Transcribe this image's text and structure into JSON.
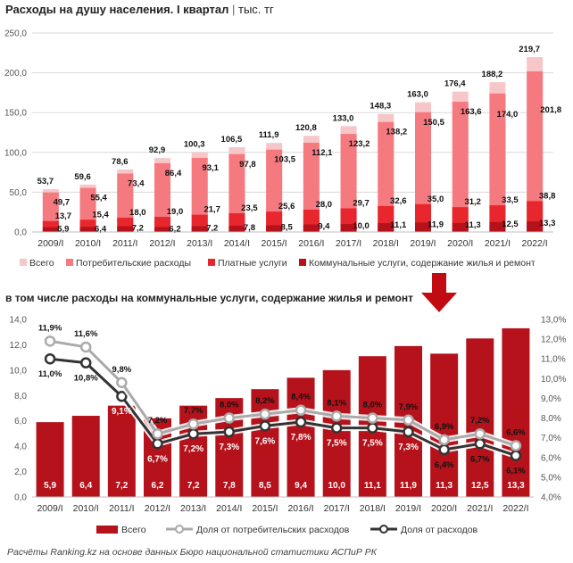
{
  "header": {
    "title_bold": "Расходы на душу населения. I квартал",
    "title_sep": "|",
    "title_unit": "тыс. тг"
  },
  "subheader": {
    "title": "в том числе расходы на коммунальные услуги, содержание жилья и ремонт"
  },
  "footer": {
    "source": "Расчёты Ranking.kz на основе данных Бюро национальной статистики АСПиР РК"
  },
  "colors": {
    "total": "#f7c6c9",
    "consumer": "#f57a80",
    "paid": "#e8262d",
    "communal": "#b5121b",
    "arrow": "#c20a12",
    "share_consumer": "#aaaaaa",
    "share_total": "#333333"
  },
  "chart_data": [
    {
      "type": "bar",
      "title": "Расходы на душу населения. I квартал",
      "unit": "тыс. тг",
      "categories": [
        "2009/I",
        "2010/I",
        "2011/I",
        "2012/I",
        "2013/I",
        "2014/I",
        "2015/I",
        "2016/I",
        "2017/I",
        "2018/I",
        "2019/I",
        "2020/I",
        "2021/I",
        "2022/I"
      ],
      "y_ticks": [
        "0,0",
        "50,0",
        "100,0",
        "150,0",
        "200,0",
        "250,0"
      ],
      "ylim": [
        0,
        250
      ],
      "grid": true,
      "legend_position": "bottom",
      "series": [
        {
          "name": "Всего",
          "values": [
            53.7,
            59.6,
            78.6,
            92.9,
            100.3,
            106.5,
            111.9,
            120.8,
            133.0,
            148.3,
            163.0,
            176.4,
            188.2,
            219.7
          ],
          "labels": [
            "53,7",
            "59,6",
            "78,6",
            "92,9",
            "100,3",
            "106,5",
            "111,9",
            "120,8",
            "133,0",
            "148,3",
            "163,0",
            "176,4",
            "188,2",
            "219,7"
          ]
        },
        {
          "name": "Потребительские расходы",
          "values": [
            49.7,
            55.4,
            73.4,
            86.4,
            93.1,
            97.8,
            103.5,
            112.1,
            123.2,
            138.2,
            150.5,
            163.6,
            174.0,
            201.8
          ],
          "labels": [
            "49,7",
            "55,4",
            "73,4",
            "86,4",
            "93,1",
            "97,8",
            "103,5",
            "112,1",
            "123,2",
            "138,2",
            "150,5",
            "163,6",
            "174,0",
            "201,8"
          ]
        },
        {
          "name": "Платные услуги",
          "values": [
            13.7,
            15.4,
            18.0,
            19.0,
            21.7,
            23.5,
            25.6,
            28.0,
            29.7,
            32.6,
            35.0,
            31.2,
            33.5,
            38.8
          ],
          "labels": [
            "13,7",
            "15,4",
            "18,0",
            "19,0",
            "21,7",
            "23,5",
            "25,6",
            "28,0",
            "29,7",
            "32,6",
            "35,0",
            "31,2",
            "33,5",
            "38,8"
          ]
        },
        {
          "name": "Коммунальные услуги, содержание жилья и ремонт",
          "values": [
            5.9,
            6.4,
            7.2,
            6.2,
            7.2,
            7.8,
            8.5,
            9.4,
            10.0,
            11.1,
            11.9,
            11.3,
            12.5,
            13.3
          ],
          "labels": [
            "5,9",
            "6,4",
            "7,2",
            "6,2",
            "7,2",
            "7,8",
            "8,5",
            "9,4",
            "10,0",
            "11,1",
            "11,9",
            "11,3",
            "12,5",
            "13,3"
          ]
        }
      ]
    },
    {
      "type": "bar",
      "title": "в том числе расходы на коммунальные услуги, содержание жилья и ремонт",
      "categories": [
        "2009/I",
        "2010/I",
        "2011/I",
        "2012/I",
        "2013/I",
        "2014/I",
        "2015/I",
        "2016/I",
        "2017/I",
        "2018/I",
        "2019/I",
        "2020/I",
        "2021/I",
        "2022/I"
      ],
      "y_ticks": [
        "0,0",
        "2,0",
        "4,0",
        "6,0",
        "8,0",
        "10,0",
        "12,0",
        "14,0"
      ],
      "ylim": [
        0,
        14
      ],
      "y2_ticks": [
        "4,0%",
        "5,0%",
        "6,0%",
        "7,0%",
        "8,0%",
        "9,0%",
        "10,0%",
        "11,0%",
        "12,0%",
        "13,0%"
      ],
      "y2lim": [
        4,
        13
      ],
      "grid": false,
      "legend_position": "bottom",
      "series": [
        {
          "name": "Всего",
          "kind": "bar",
          "values": [
            5.9,
            6.4,
            7.2,
            6.2,
            7.2,
            7.8,
            8.5,
            9.4,
            10.0,
            11.1,
            11.9,
            11.3,
            12.5,
            13.3
          ],
          "labels": [
            "5,9",
            "6,4",
            "7,2",
            "6,2",
            "7,2",
            "7,8",
            "8,5",
            "9,4",
            "10,0",
            "11,1",
            "11,9",
            "11,3",
            "12,5",
            "13,3"
          ]
        },
        {
          "name": "Доля от потребительских расходов",
          "kind": "line",
          "axis": "right",
          "values": [
            11.9,
            11.6,
            9.8,
            7.2,
            7.7,
            8.0,
            8.2,
            8.4,
            8.1,
            8.0,
            7.9,
            6.9,
            7.2,
            6.6
          ],
          "labels": [
            "11,9%",
            "11,6%",
            "9,8%",
            "7,2%",
            "7,7%",
            "8,0%",
            "8,2%",
            "8,4%",
            "8,1%",
            "8,0%",
            "7,9%",
            "6,9%",
            "7,2%",
            "6,6%"
          ]
        },
        {
          "name": "Доля от расходов",
          "kind": "line",
          "axis": "right",
          "values": [
            11.0,
            10.8,
            9.1,
            6.7,
            7.2,
            7.3,
            7.6,
            7.8,
            7.5,
            7.5,
            7.3,
            6.4,
            6.7,
            6.1
          ],
          "labels": [
            "11,0%",
            "10,8%",
            "9,1%",
            "6,7%",
            "7,2%",
            "7,3%",
            "7,6%",
            "7,8%",
            "7,5%",
            "7,5%",
            "7,3%",
            "6,4%",
            "6,7%",
            "6,1%"
          ]
        }
      ]
    }
  ]
}
